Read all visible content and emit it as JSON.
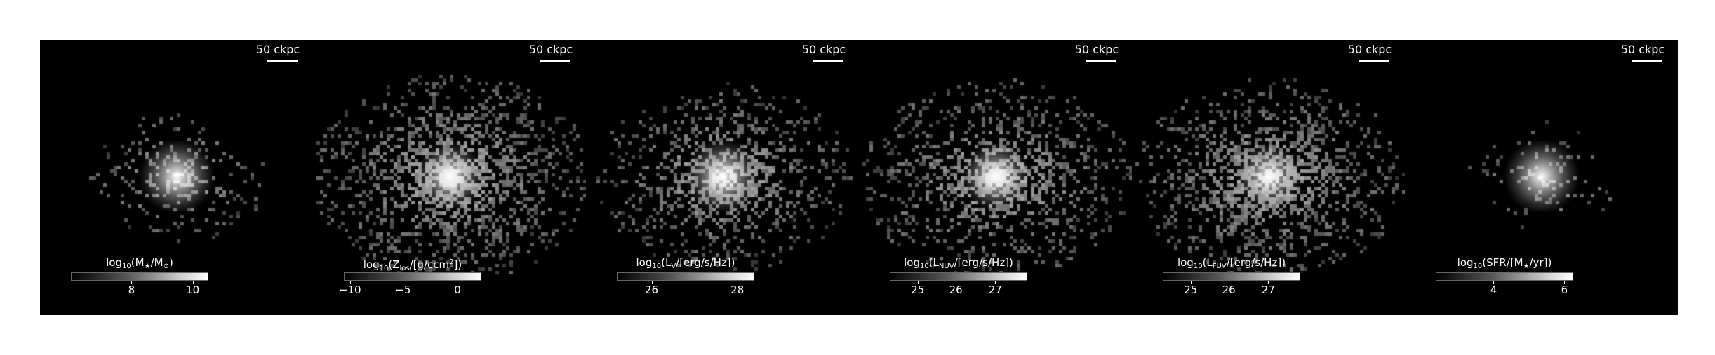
{
  "scale_bar_label": "50 ckpc",
  "panels": [
    {
      "id": "stellar-mass",
      "colorbar": {
        "label_parts": [
          "log",
          "10",
          "(M",
          "★",
          "/M",
          "⊙",
          ")"
        ],
        "ticks": [
          "8",
          "10"
        ],
        "tick_fracs": [
          0.44,
          0.89
        ]
      },
      "map": {
        "spread": 0.55,
        "density": 0.22,
        "core_strength": 1.0,
        "seed": 3
      }
    },
    {
      "id": "metallicity",
      "colorbar": {
        "label_parts": [
          "log",
          "10",
          "(Z",
          "los",
          "/[g/ccm",
          "2",
          "])"
        ],
        "ticks": [
          "−10",
          "−5",
          "0"
        ],
        "tick_fracs": [
          0.04,
          0.43,
          0.83
        ]
      },
      "map": {
        "spread": 0.95,
        "density": 0.55,
        "core_strength": 0.9,
        "seed": 7
      }
    },
    {
      "id": "v-band",
      "colorbar": {
        "label_parts": [
          "log",
          "10",
          "(L",
          "V",
          "/[erg/s/Hz])"
        ],
        "ticks": [
          "26",
          "28"
        ],
        "tick_fracs": [
          0.25,
          0.88
        ]
      },
      "map": {
        "spread": 0.85,
        "density": 0.45,
        "core_strength": 1.0,
        "seed": 11
      }
    },
    {
      "id": "nuv",
      "colorbar": {
        "label_parts": [
          "log",
          "10",
          "(L",
          "NUV",
          "/[erg/s/Hz])"
        ],
        "ticks": [
          "25",
          "26",
          "27"
        ],
        "tick_fracs": [
          0.2,
          0.48,
          0.77
        ]
      },
      "map": {
        "spread": 0.9,
        "density": 0.5,
        "core_strength": 0.9,
        "seed": 17
      }
    },
    {
      "id": "fuv",
      "colorbar": {
        "label_parts": [
          "log",
          "10",
          "(L",
          "FUV",
          "/[erg/s/Hz])"
        ],
        "ticks": [
          "25",
          "26",
          "27"
        ],
        "tick_fracs": [
          0.2,
          0.48,
          0.77
        ]
      },
      "map": {
        "spread": 0.9,
        "density": 0.55,
        "core_strength": 0.85,
        "seed": 23
      }
    },
    {
      "id": "sfr",
      "colorbar": {
        "label_parts": [
          "log",
          "10",
          "(SFR/[M",
          "★",
          "/yr])"
        ],
        "ticks": [
          "4",
          "6"
        ],
        "tick_fracs": [
          0.42,
          0.94
        ]
      },
      "map": {
        "spread": 0.45,
        "density": 0.12,
        "core_strength": 1.0,
        "seed": 31
      }
    }
  ]
}
